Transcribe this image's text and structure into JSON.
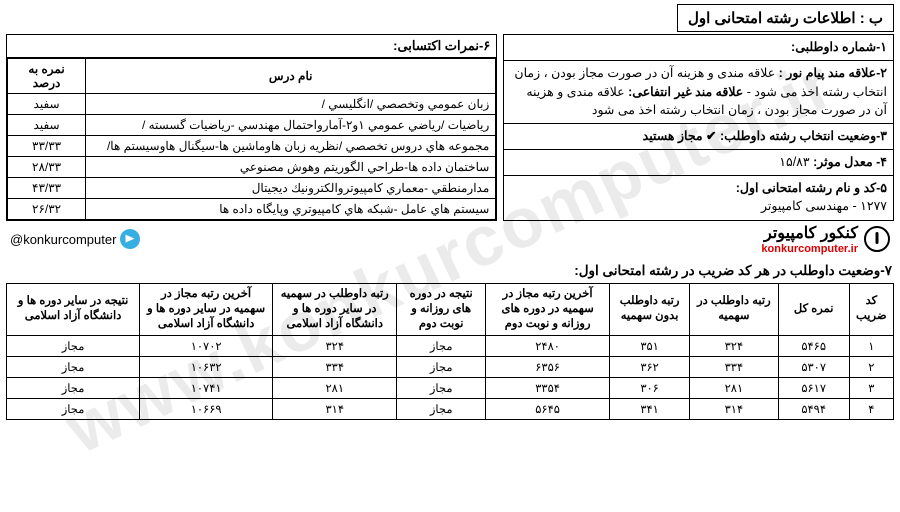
{
  "watermark": "www.konkurcomputer.ir",
  "header": "ب : اطلاعات رشته امتحانی اول",
  "info": {
    "line1_label": "۱-شماره داوطلبی:",
    "line2a_label": "۲-علاقه مند پیام نور :",
    "line2a_text": " علاقه مندی و هزینه آن در صورت مجاز بودن ، زمان انتخاب رشته اخذ می شود - ",
    "line2b_label": "علاقه مند غیر انتفاعی:",
    "line2b_text": " علاقه مندی و هزینه آن در صورت مجاز بودن ، زمان انتخاب رشته اخذ می شود",
    "line3_label": "۳-وضعیت انتخاب رشته داوطلب:",
    "line3_text": " ✔ مجاز هستید",
    "line4_label": "۴- معدل موثر:",
    "line4_value": " ۱۵/۸۳",
    "line5_label": "۵-کد و نام رشته امتحانی اول:",
    "line5_value": "۱۲۷۷ - مهندسی کامپیوتر"
  },
  "scores": {
    "title": "۶-نمرات اکتسابی:",
    "col_course": "نام درس",
    "col_percent": "نمره به درصد",
    "rows": [
      {
        "course": "زبان عمومي وتخصصي /انگليسي /",
        "percent": "سفید"
      },
      {
        "course": "رياضيات /رياضي عمومي ۱و۲-آمارواحتمال مهندسي -رياضيات گسسته /",
        "percent": "سفید"
      },
      {
        "course": "مجموعه هاي دروس تخصصي /نظريه زبان هاوماشين ها-سيگنال هاوسيستم ها/",
        "percent": "۳۳/۳۳"
      },
      {
        "course": "ساختمان داده ها-طراحي الگوريتم وهوش مصنوعي",
        "percent": "۲۸/۳۳"
      },
      {
        "course": "مدارمنطقي -معماري كامپيوتروالكترونيك ديجيتال",
        "percent": "۴۳/۳۳"
      },
      {
        "course": "سيستم هاي عامل -شبكه هاي كامپيوتري وپايگاه داده ها",
        "percent": "۲۶/۳۲"
      }
    ]
  },
  "brand": {
    "name": "کنکور کامپیوتر",
    "site": "konkurcomputer.ir",
    "handle": "@konkurcomputer"
  },
  "section7": {
    "title": "۷-وضعیت داوطلب در هر کد ضریب در رشته امتحانی اول:",
    "headers": {
      "c1": "کد ضریب",
      "c2": "نمره کل",
      "c3": "رتبه داوطلب در سهمیه",
      "c4": "رتبه داوطلب بدون سهمیه",
      "c5": "آخرین رتبه مجاز در سهمیه در دوره های روزانه و نوبت دوم",
      "c6": "نتیجه در دوره های روزانه و نوبت دوم",
      "c7": "رتبه داوطلب در سهمیه در سایر دوره ها و دانشگاه آزاد اسلامی",
      "c8": "آخرین رتبه مجاز در سهمیه در سایر دوره ها و دانشگاه آزاد اسلامی",
      "c9": "نتیجه در سایر دوره ها و دانشگاه آزاد اسلامی"
    },
    "rows": [
      {
        "c1": "۱",
        "c2": "۵۴۶۵",
        "c3": "۳۲۴",
        "c4": "۳۵۱",
        "c5": "۲۴۸۰",
        "c6": "مجاز",
        "c7": "۳۲۴",
        "c8": "۱۰۷۰۲",
        "c9": "مجاز"
      },
      {
        "c1": "۲",
        "c2": "۵۳۰۷",
        "c3": "۳۳۴",
        "c4": "۳۶۲",
        "c5": "۶۳۵۶",
        "c6": "مجاز",
        "c7": "۳۳۴",
        "c8": "۱۰۶۳۲",
        "c9": "مجاز"
      },
      {
        "c1": "۳",
        "c2": "۵۶۱۷",
        "c3": "۲۸۱",
        "c4": "۳۰۶",
        "c5": "۳۳۵۴",
        "c6": "مجاز",
        "c7": "۲۸۱",
        "c8": "۱۰۷۴۱",
        "c9": "مجاز"
      },
      {
        "c1": "۴",
        "c2": "۵۴۹۴",
        "c3": "۳۱۴",
        "c4": "۳۴۱",
        "c5": "۵۶۴۵",
        "c6": "مجاز",
        "c7": "۳۱۴",
        "c8": "۱۰۶۶۹",
        "c9": "مجاز"
      }
    ]
  }
}
